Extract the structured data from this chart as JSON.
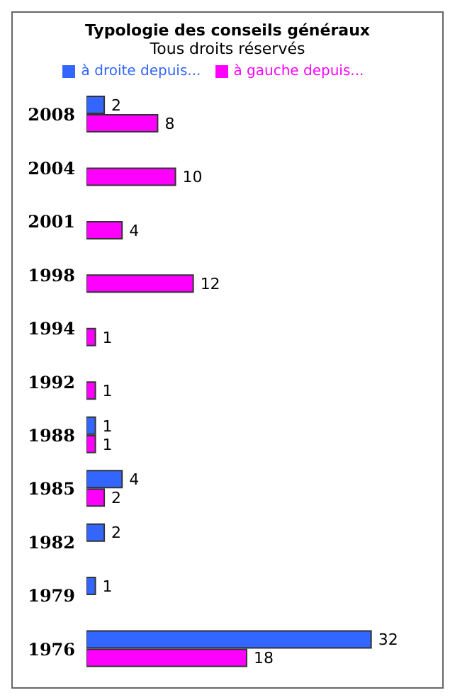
{
  "chart_data": {
    "type": "bar",
    "orientation": "horizontal",
    "title": "Typologie des conseils généraux",
    "subtitle": "Tous droits réservés",
    "categories": [
      "2008",
      "2004",
      "2001",
      "1998",
      "1994",
      "1992",
      "1988",
      "1985",
      "1982",
      "1979",
      "1976"
    ],
    "series": [
      {
        "name": "à droite depuis...",
        "color": "#3366ff",
        "values": [
          2,
          null,
          null,
          null,
          null,
          null,
          1,
          4,
          2,
          1,
          32
        ]
      },
      {
        "name": "à gauche depuis...",
        "color": "#ff00ff",
        "values": [
          8,
          10,
          4,
          12,
          1,
          1,
          1,
          2,
          null,
          null,
          18
        ]
      }
    ],
    "data_labels": true,
    "legend": "top",
    "grid": false
  }
}
